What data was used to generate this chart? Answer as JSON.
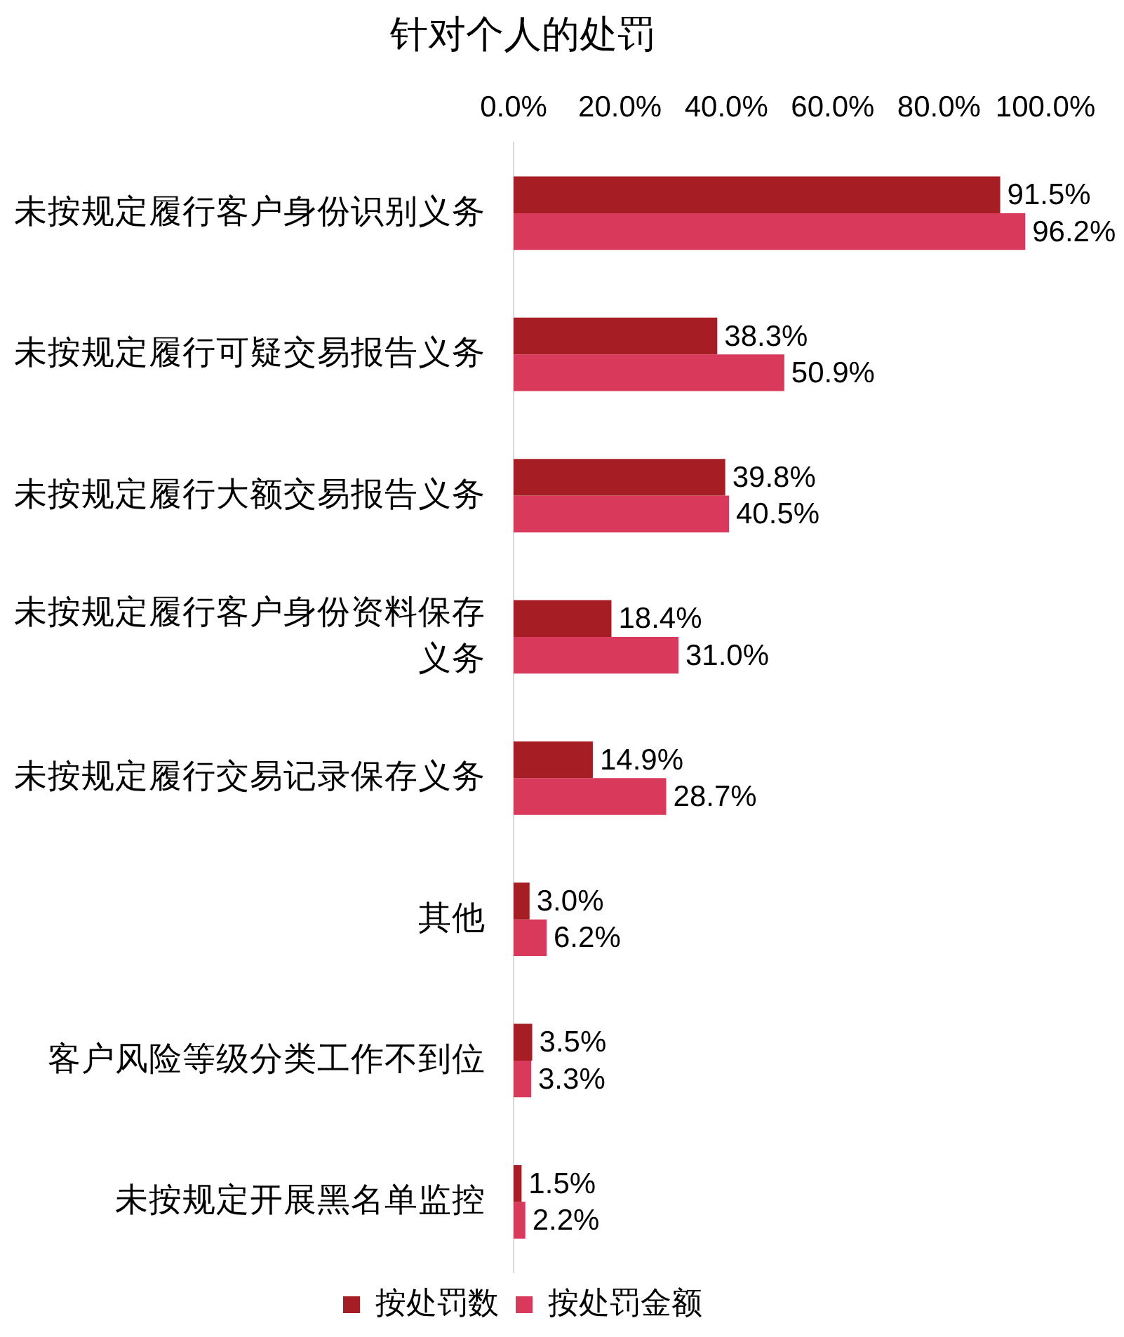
{
  "chart_data": {
    "type": "bar",
    "title": "针对个人的处罚",
    "orientation": "horizontal",
    "categories": [
      "未按规定履行客户身份识别义务",
      "未按规定履行可疑交易报告义务",
      "未按规定履行大额交易报告义务",
      "未按规定履行客户身份资料保存义务",
      "未按规定履行交易记录保存义务",
      "其他",
      "客户风险等级分类工作不到位",
      "未按规定开展黑名单监控"
    ],
    "series": [
      {
        "name": "按处罚数",
        "color": "#a61e24",
        "values": [
          91.5,
          38.3,
          39.8,
          18.4,
          14.9,
          3.0,
          3.5,
          1.5
        ],
        "value_labels": [
          "91.5%",
          "38.3%",
          "39.8%",
          "18.4%",
          "14.9%",
          "3.0%",
          "3.5%",
          "1.5%"
        ]
      },
      {
        "name": "按处罚金额",
        "color": "#d9395a",
        "values": [
          96.2,
          50.9,
          40.5,
          31.0,
          28.7,
          6.2,
          3.3,
          2.2
        ],
        "value_labels": [
          "96.2%",
          "50.9%",
          "40.5%",
          "31.0%",
          "28.7%",
          "6.2%",
          "3.3%",
          "2.2%"
        ]
      }
    ],
    "xlim": [
      0,
      100
    ],
    "xticks": [
      {
        "value": 0,
        "label": "0.0%"
      },
      {
        "value": 20,
        "label": "20.0%"
      },
      {
        "value": 40,
        "label": "40.0%"
      },
      {
        "value": 60,
        "label": "60.0%"
      },
      {
        "value": 80,
        "label": "80.0%"
      },
      {
        "value": 100,
        "label": "100.0%"
      }
    ],
    "legend": "bottom"
  }
}
